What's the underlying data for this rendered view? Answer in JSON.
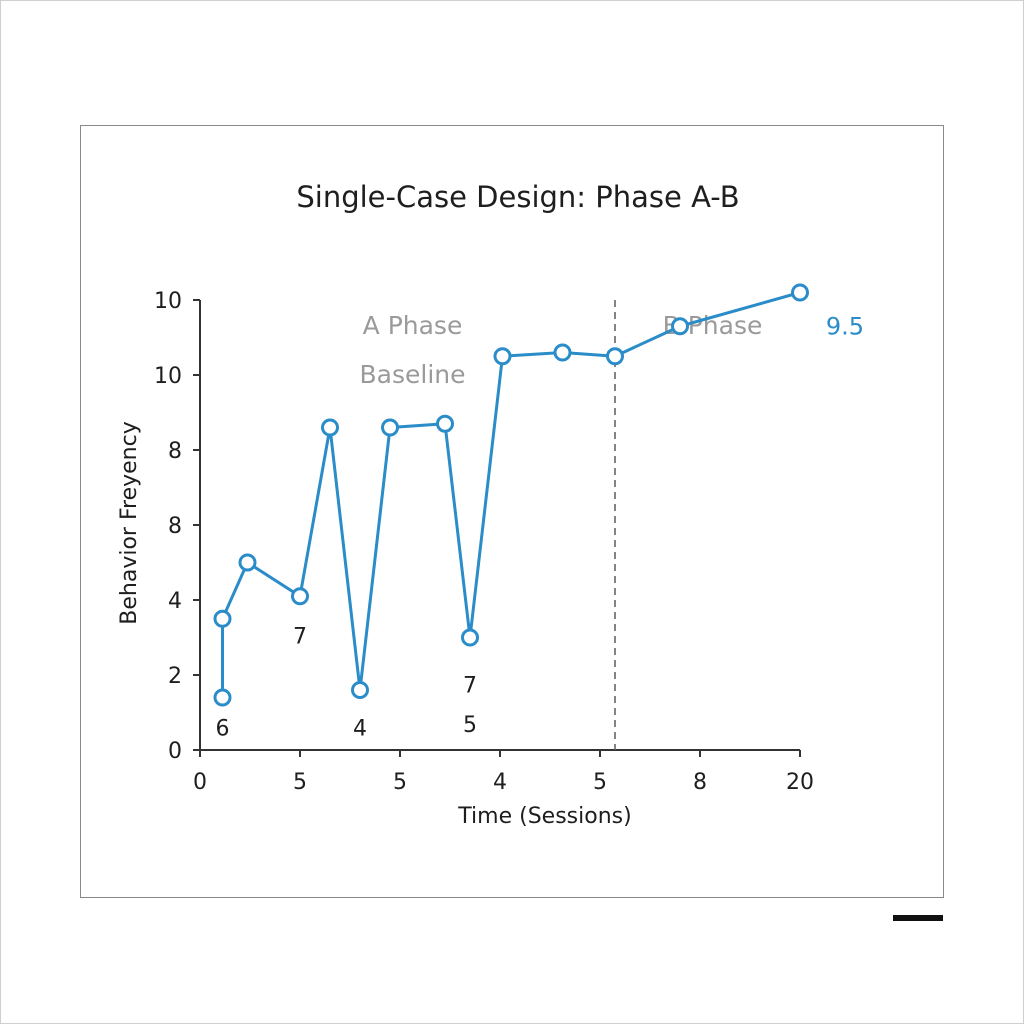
{
  "chart_data": {
    "type": "line",
    "title": "Single-Case Design: Phase A-B",
    "xlabel": "Time (Sessions)",
    "ylabel": "Behavior Freyency",
    "x_tick_labels": [
      "0",
      "5",
      "5",
      "4",
      "5",
      "8",
      "20"
    ],
    "y_tick_labels": [
      "0",
      "2",
      "4",
      "8",
      "8",
      "10",
      "10"
    ],
    "ylim": [
      0,
      12
    ],
    "xlim": [
      0,
      12
    ],
    "grid": false,
    "phases": [
      {
        "name": "A Phase",
        "subtitle": "Baseline"
      },
      {
        "name": "B Phase"
      }
    ],
    "phase_change_x": 8.3,
    "series": [
      {
        "color": "#2a8cc8",
        "x": [
          0.45,
          0.45,
          0.95,
          2.0,
          2.6,
          3.2,
          3.8,
          4.9,
          5.4,
          6.05,
          7.25,
          8.3,
          9.6,
          12.0
        ],
        "y": [
          1.4,
          3.5,
          5.0,
          4.1,
          8.6,
          1.6,
          8.6,
          8.7,
          3.0,
          10.5,
          10.6,
          10.5,
          11.3,
          12.2
        ]
      }
    ],
    "point_labels": [
      {
        "text": "6",
        "x": 0.45,
        "y": 0.6
      },
      {
        "text": "7",
        "x": 2.0,
        "y": 3.05
      },
      {
        "text": "4",
        "x": 3.2,
        "y": 0.6
      },
      {
        "text": "7",
        "x": 5.4,
        "y": 1.75
      },
      {
        "text": "5",
        "x": 5.4,
        "y": 0.7
      }
    ],
    "annotation": {
      "text": "9.5",
      "x": 12.9,
      "y": 11.3
    }
  }
}
